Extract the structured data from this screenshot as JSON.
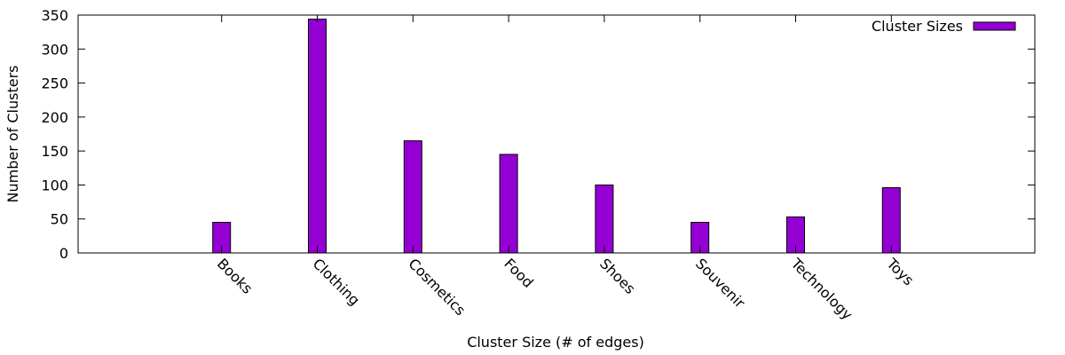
{
  "chart_data": {
    "type": "bar",
    "xlabel": "Cluster Size (# of edges)",
    "ylabel": "Number of Clusters",
    "ylim": [
      0,
      350
    ],
    "yticks": [
      0,
      50,
      100,
      150,
      200,
      250,
      300,
      350
    ],
    "grid": false,
    "legend_position": "top-right",
    "categories": [
      "Books",
      "Clothing",
      "Cosmetics",
      "Food",
      "Shoes",
      "Souvenir",
      "Technology",
      "Toys"
    ],
    "series": [
      {
        "name": "Cluster Sizes",
        "color": "#9400d3",
        "values": [
          45,
          344,
          165,
          145,
          100,
          45,
          53,
          96
        ]
      }
    ]
  }
}
